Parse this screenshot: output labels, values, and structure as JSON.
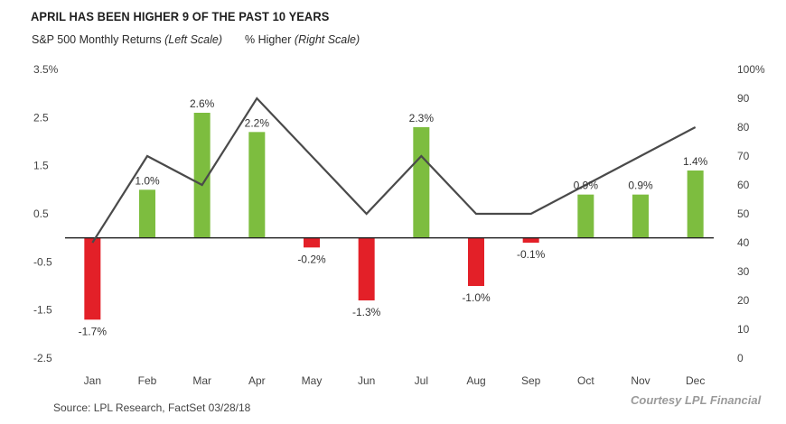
{
  "title": "APRIL HAS BEEN HIGHER 9 OF THE PAST 10 YEARS",
  "legend": {
    "series1_name": "S&P 500 Monthly Returns",
    "series1_scale": "(Left Scale)",
    "series2_name": "% Higher",
    "series2_scale": "(Right Scale)"
  },
  "source": "Source: LPL Research, FactSet 03/28/18",
  "watermark": "Courtesy LPL Financial",
  "colors": {
    "positive": "#7dbd3f",
    "negative": "#e32028",
    "line": "#4a4a4a",
    "axis": "#222222"
  },
  "chart_data": {
    "type": "bar",
    "categories": [
      "Jan",
      "Feb",
      "Mar",
      "Apr",
      "May",
      "Jun",
      "Jul",
      "Aug",
      "Sep",
      "Oct",
      "Nov",
      "Dec"
    ],
    "series": [
      {
        "name": "S&P 500 Monthly Returns",
        "axis": "left",
        "type": "bar",
        "values": [
          -1.7,
          1.0,
          2.6,
          2.2,
          -0.2,
          -1.3,
          2.3,
          -1.0,
          -0.1,
          0.9,
          0.9,
          1.4
        ],
        "labels": [
          "-1.7%",
          "1.0%",
          "2.6%",
          "2.2%",
          "-0.2%",
          "-1.3%",
          "2.3%",
          "-1.0%",
          "-0.1%",
          "0.9%",
          "0.9%",
          "1.4%"
        ]
      },
      {
        "name": "% Higher",
        "axis": "right",
        "type": "line",
        "values": [
          40,
          70,
          60,
          90,
          70,
          50,
          70,
          50,
          50,
          60,
          70,
          80
        ]
      }
    ],
    "left_axis": {
      "ylim": [
        -2.5,
        3.5
      ],
      "ticks": [
        3.5,
        2.5,
        1.5,
        0.5,
        -0.5,
        -1.5,
        -2.5
      ],
      "tick_labels": [
        "3.5%",
        "2.5",
        "1.5",
        "0.5",
        "-0.5",
        "-1.5",
        "-2.5"
      ]
    },
    "right_axis": {
      "ylim": [
        0,
        100
      ],
      "ticks": [
        100,
        90,
        80,
        70,
        60,
        50,
        40,
        30,
        20,
        10,
        0
      ],
      "tick_labels": [
        "100%",
        "90",
        "80",
        "70",
        "60",
        "50",
        "40",
        "30",
        "20",
        "10",
        "0"
      ]
    },
    "grid": false
  }
}
